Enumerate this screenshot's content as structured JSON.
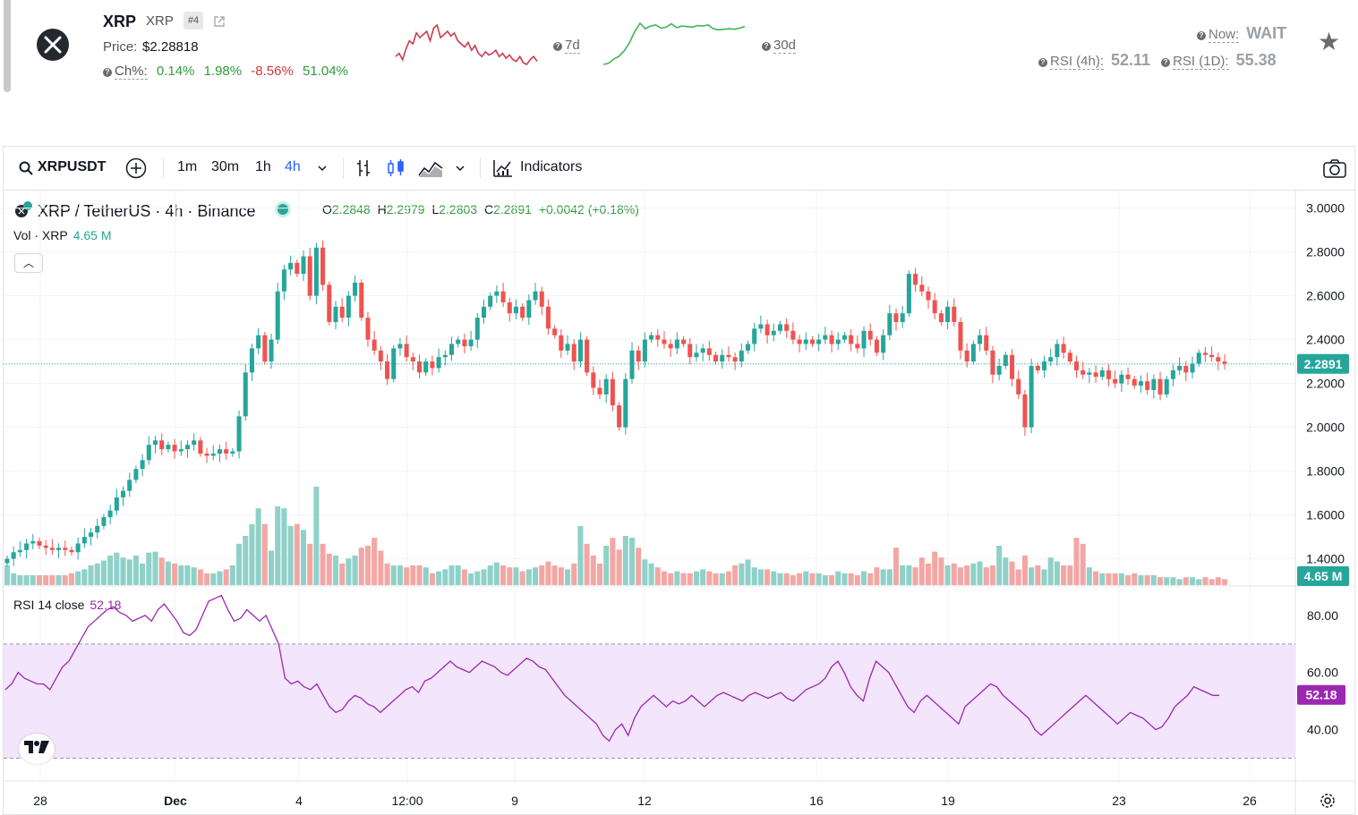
{
  "header": {
    "symbol": "XRP",
    "symbol_secondary": "XRP",
    "rank": "#4",
    "price_label": "Price:",
    "price_value": "$2.28818",
    "change_label": "Ch%:",
    "changes": [
      "0.14%",
      "1.98%",
      "-8.56%",
      "51.04%"
    ],
    "period_7d": "7d",
    "period_30d": "30d",
    "now_label": "Now:",
    "now_value": "WAIT",
    "rsi4h_label": "RSI (4h):",
    "rsi4h_value": "52.11",
    "rsi1d_label": "RSI (1D):",
    "rsi1d_value": "55.38",
    "spark_7d": [
      70,
      72,
      68,
      75,
      80,
      78,
      85,
      82,
      84,
      86,
      80,
      88,
      90,
      82,
      84,
      86,
      83,
      85,
      80,
      78,
      76,
      79,
      74,
      77,
      72,
      70,
      73,
      71,
      72,
      74,
      70,
      72,
      69,
      71,
      68,
      67,
      70,
      66,
      65,
      68,
      70,
      67
    ],
    "spark_30d": [
      20,
      22,
      30,
      35,
      45,
      60,
      80,
      95,
      85,
      90,
      92,
      86,
      88,
      94,
      87,
      90,
      89,
      88,
      91,
      90,
      92,
      85,
      83,
      84,
      85,
      84,
      86,
      89
    ],
    "colors": {
      "up": "#26a69a",
      "down": "#ef5350",
      "rsi": "#9c27b0",
      "pos": "#2e9c3a",
      "neg": "#d03838"
    }
  },
  "toolbar": {
    "symbol": "XRPUSDT",
    "intervals": [
      "1m",
      "30m",
      "1h",
      "4h"
    ],
    "active_interval": "4h",
    "indicators_label": "Indicators"
  },
  "legend": {
    "title": "XRP / TetherUS · 4h · Binance",
    "o_label": "O",
    "o": "2.2848",
    "h_label": "H",
    "h": "2.2979",
    "l_label": "L",
    "l": "2.2803",
    "c_label": "C",
    "c": "2.2891",
    "change": "+0.0042 (+0.18%)",
    "vol_label": "Vol · XRP",
    "vol_value": "4.65 M",
    "rsi_label": "RSI 14 close",
    "rsi_value": "52.18"
  },
  "chart_data": {
    "type": "candlestick",
    "title": "XRP / TetherUS · 4h · Binance",
    "price_axis_ticks": [
      "3.0000",
      "2.8000",
      "2.6000",
      "2.4000",
      "2.2000",
      "2.0000",
      "1.8000",
      "1.6000",
      "1.4000"
    ],
    "price_range": [
      1.28,
      3.08
    ],
    "last_price": "2.2891",
    "last_volume": "4.65 M",
    "time_axis_labels": [
      "28",
      "Dec",
      "4",
      "12:00",
      "9",
      "12",
      "16",
      "19",
      "23",
      "26"
    ],
    "close": [
      1.4,
      1.43,
      1.44,
      1.47,
      1.48,
      1.46,
      1.45,
      1.44,
      1.45,
      1.44,
      1.43,
      1.47,
      1.5,
      1.52,
      1.55,
      1.59,
      1.62,
      1.68,
      1.71,
      1.76,
      1.81,
      1.85,
      1.92,
      1.94,
      1.9,
      1.92,
      1.89,
      1.9,
      1.92,
      1.94,
      1.88,
      1.87,
      1.88,
      1.9,
      1.88,
      1.89,
      2.05,
      2.25,
      2.36,
      2.42,
      2.3,
      2.4,
      2.62,
      2.72,
      2.75,
      2.7,
      2.78,
      2.6,
      2.82,
      2.65,
      2.48,
      2.55,
      2.5,
      2.6,
      2.66,
      2.5,
      2.4,
      2.35,
      2.3,
      2.22,
      2.36,
      2.38,
      2.32,
      2.3,
      2.25,
      2.3,
      2.27,
      2.32,
      2.33,
      2.38,
      2.4,
      2.37,
      2.4,
      2.5,
      2.55,
      2.6,
      2.62,
      2.57,
      2.52,
      2.55,
      2.5,
      2.58,
      2.62,
      2.55,
      2.45,
      2.42,
      2.35,
      2.38,
      2.3,
      2.4,
      2.25,
      2.18,
      2.15,
      2.22,
      2.1,
      2.0,
      2.22,
      2.35,
      2.3,
      2.4,
      2.42,
      2.4,
      2.38,
      2.36,
      2.4,
      2.38,
      2.32,
      2.34,
      2.36,
      2.33,
      2.3,
      2.33,
      2.32,
      2.3,
      2.35,
      2.38,
      2.45,
      2.47,
      2.42,
      2.44,
      2.47,
      2.44,
      2.4,
      2.38,
      2.4,
      2.38,
      2.4,
      2.42,
      2.38,
      2.4,
      2.42,
      2.38,
      2.36,
      2.44,
      2.4,
      2.34,
      2.42,
      2.52,
      2.48,
      2.52,
      2.7,
      2.65,
      2.62,
      2.58,
      2.52,
      2.48,
      2.55,
      2.48,
      2.35,
      2.3,
      2.38,
      2.42,
      2.35,
      2.24,
      2.28,
      2.33,
      2.22,
      2.15,
      2.0,
      2.28,
      2.26,
      2.3,
      2.32,
      2.38,
      2.34,
      2.3,
      2.26,
      2.24,
      2.25,
      2.23,
      2.26,
      2.22,
      2.2,
      2.24,
      2.22,
      2.19,
      2.21,
      2.17,
      2.22,
      2.15,
      2.22,
      2.26,
      2.28,
      2.25,
      2.29,
      2.34,
      2.33,
      2.32,
      2.3,
      2.29
    ],
    "volume_relative": [
      0.2,
      0.12,
      0.1,
      0.1,
      0.1,
      0.1,
      0.1,
      0.1,
      0.1,
      0.1,
      0.12,
      0.14,
      0.16,
      0.2,
      0.22,
      0.25,
      0.3,
      0.33,
      0.28,
      0.26,
      0.3,
      0.22,
      0.33,
      0.34,
      0.28,
      0.24,
      0.22,
      0.2,
      0.2,
      0.18,
      0.16,
      0.12,
      0.12,
      0.14,
      0.16,
      0.2,
      0.42,
      0.5,
      0.62,
      0.78,
      0.62,
      0.35,
      0.8,
      0.78,
      0.6,
      0.62,
      0.56,
      0.42,
      1.0,
      0.42,
      0.32,
      0.3,
      0.22,
      0.27,
      0.3,
      0.38,
      0.4,
      0.48,
      0.35,
      0.22,
      0.2,
      0.2,
      0.18,
      0.2,
      0.2,
      0.18,
      0.12,
      0.14,
      0.16,
      0.2,
      0.2,
      0.16,
      0.12,
      0.14,
      0.16,
      0.2,
      0.23,
      0.2,
      0.18,
      0.18,
      0.14,
      0.16,
      0.18,
      0.2,
      0.24,
      0.2,
      0.18,
      0.16,
      0.22,
      0.6,
      0.42,
      0.3,
      0.22,
      0.4,
      0.48,
      0.36,
      0.5,
      0.48,
      0.38,
      0.26,
      0.22,
      0.18,
      0.14,
      0.12,
      0.14,
      0.12,
      0.12,
      0.14,
      0.16,
      0.14,
      0.12,
      0.12,
      0.14,
      0.2,
      0.22,
      0.26,
      0.18,
      0.16,
      0.16,
      0.14,
      0.12,
      0.12,
      0.1,
      0.12,
      0.14,
      0.12,
      0.12,
      0.1,
      0.1,
      0.14,
      0.12,
      0.12,
      0.1,
      0.14,
      0.12,
      0.18,
      0.16,
      0.16,
      0.38,
      0.2,
      0.2,
      0.18,
      0.28,
      0.22,
      0.34,
      0.28,
      0.2,
      0.22,
      0.18,
      0.2,
      0.22,
      0.24,
      0.18,
      0.2,
      0.4,
      0.28,
      0.24,
      0.16,
      0.3,
      0.18,
      0.2,
      0.16,
      0.28,
      0.24,
      0.2,
      0.2,
      0.48,
      0.42,
      0.18,
      0.14,
      0.12,
      0.12,
      0.12,
      0.12,
      0.1,
      0.12,
      0.1,
      0.1,
      0.1,
      0.08,
      0.08,
      0.08,
      0.06,
      0.08,
      0.08,
      0.06,
      0.08,
      0.06,
      0.08,
      0.06,
      0.08,
      0.06,
      0.08,
      0.06,
      0.04,
      0.04
    ],
    "rsi": {
      "period": 14,
      "range": [
        22,
        90
      ],
      "levels": [
        70,
        30
      ],
      "ticks": [
        "80.00",
        "60.00",
        "40.00"
      ],
      "last": "52.18",
      "values": [
        54,
        56,
        60,
        58,
        57,
        56,
        56,
        54,
        58,
        62,
        64,
        68,
        72,
        76,
        78,
        80,
        82,
        83,
        81,
        80,
        78,
        79,
        80,
        78,
        82,
        84,
        81,
        78,
        74,
        73,
        75,
        80,
        85,
        86,
        87,
        82,
        78,
        79,
        82,
        80,
        78,
        80,
        75,
        70,
        58,
        56,
        57,
        55,
        54,
        56,
        52,
        48,
        46,
        47,
        50,
        52,
        51,
        49,
        48,
        46,
        48,
        50,
        52,
        54,
        55,
        53,
        57,
        58,
        60,
        62,
        64,
        62,
        61,
        60,
        62,
        64,
        63,
        62,
        60,
        59,
        61,
        63,
        65,
        64,
        62,
        61,
        58,
        55,
        52,
        50,
        48,
        46,
        44,
        42,
        38,
        36,
        40,
        42,
        38,
        44,
        48,
        50,
        52,
        50,
        48,
        50,
        49,
        50,
        52,
        50,
        48,
        50,
        52,
        53,
        52,
        51,
        50,
        52,
        53,
        52,
        51,
        52,
        53,
        51,
        50,
        52,
        54,
        55,
        56,
        58,
        62,
        64,
        60,
        55,
        52,
        50,
        58,
        64,
        62,
        60,
        56,
        52,
        48,
        46,
        50,
        52,
        50,
        48,
        46,
        44,
        42,
        48,
        50,
        52,
        54,
        56,
        55,
        52,
        50,
        48,
        46,
        44,
        40,
        38,
        40,
        42,
        44,
        46,
        48,
        50,
        52,
        50,
        48,
        46,
        44,
        42,
        44,
        46,
        45,
        44,
        42,
        40,
        41,
        44,
        48,
        50,
        52,
        55,
        54,
        53,
        52,
        52
      ]
    }
  }
}
